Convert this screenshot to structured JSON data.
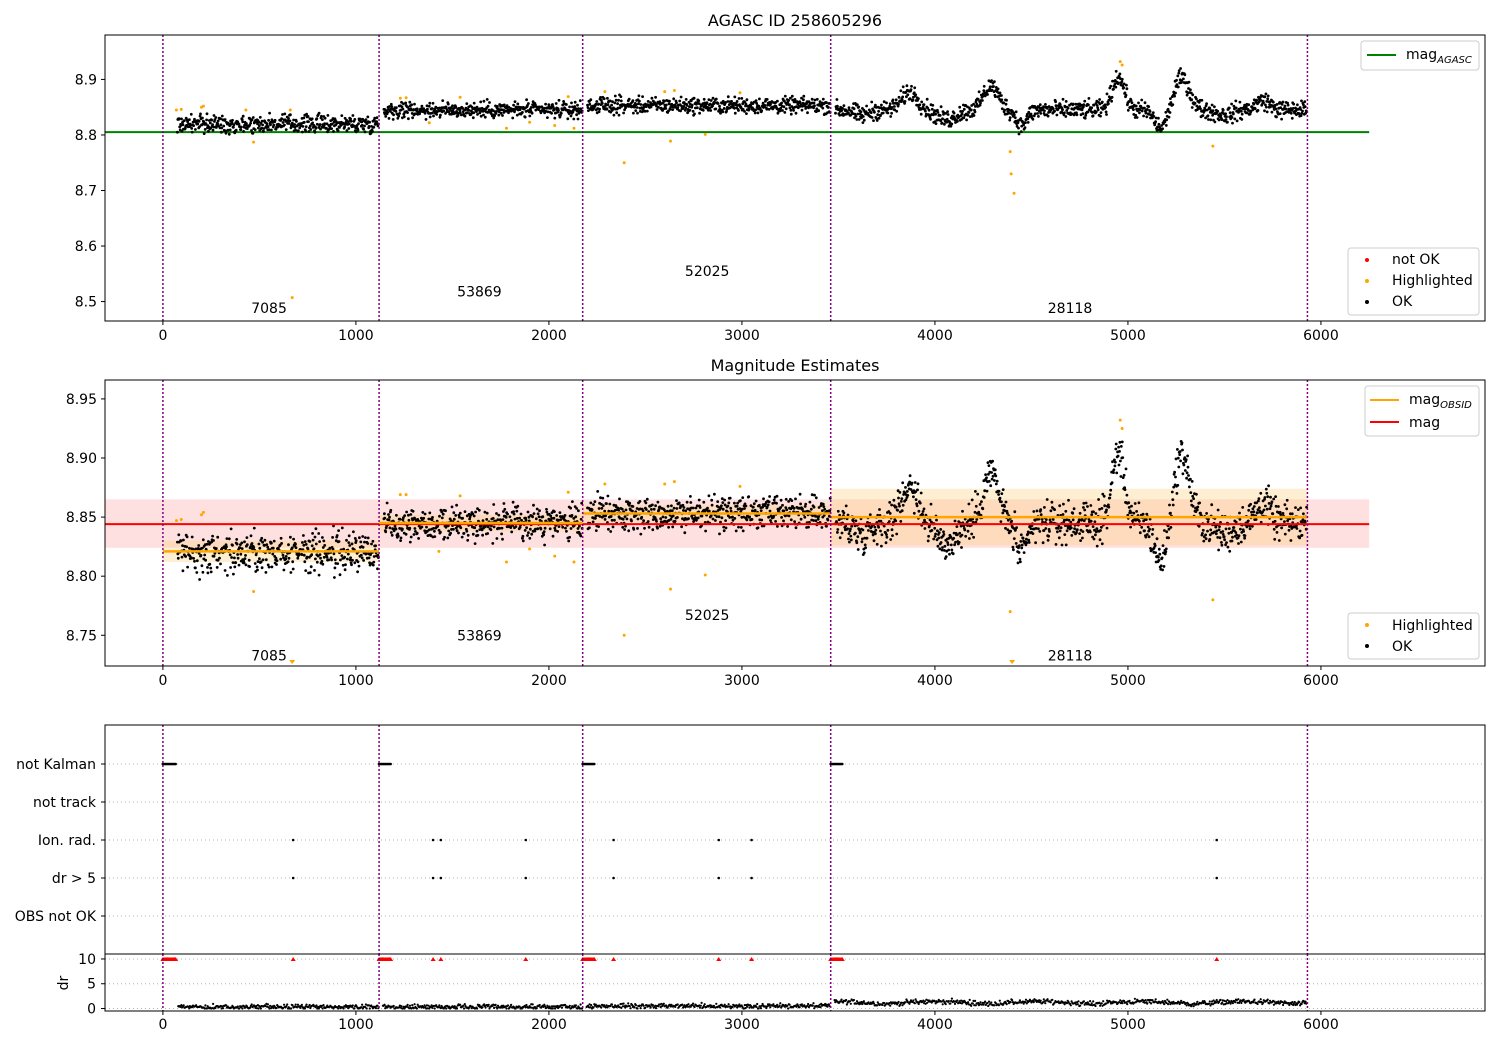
{
  "colors": {
    "ok": "#000000",
    "highlighted": "#ffa500",
    "not_ok": "#ff0000",
    "mag_agasc": "#008000",
    "mag_obsid": "#ffa500",
    "mag": "#ff0000",
    "obsid_line": "#800080",
    "grid": "#b0b0b0"
  },
  "chart_data": [
    {
      "type": "scatter",
      "title": "AGASC ID 258605296",
      "xlim": [
        -300,
        6850
      ],
      "ylim": [
        8.465,
        8.98
      ],
      "x_ticks": [
        0,
        1000,
        2000,
        3000,
        4000,
        5000,
        6000
      ],
      "y_ticks": [
        8.5,
        8.6,
        8.7,
        8.8,
        8.9
      ],
      "obsid_boundaries": [
        0,
        1120,
        2175,
        3460,
        5930
      ],
      "obsid_labels": [
        {
          "text": "7085",
          "x": 550,
          "y": 8.488
        },
        {
          "text": "53869",
          "x": 1640,
          "y": 8.518
        },
        {
          "text": "52025",
          "x": 2820,
          "y": 8.555
        },
        {
          "text": "28118",
          "x": 4700,
          "y": 8.488
        }
      ],
      "mag_agasc": {
        "label": "mag",
        "sub": "AGASC",
        "value": 8.805,
        "x_range": [
          -300,
          6250
        ]
      },
      "segments": [
        {
          "start": 50,
          "end": 1120,
          "mean": 8.82,
          "noise": 0.008,
          "gap_after": 0
        },
        {
          "start": 1120,
          "end": 2175,
          "mean": 8.845,
          "noise": 0.007
        },
        {
          "start": 2175,
          "end": 3460,
          "mean": 8.853,
          "noise": 0.007
        },
        {
          "start": 3460,
          "end": 5930,
          "mean": 8.85,
          "noise": 0.008
        }
      ],
      "highlighted_points": [
        [
          70,
          8.845
        ],
        [
          95,
          8.846
        ],
        [
          200,
          8.85
        ],
        [
          210,
          8.852
        ],
        [
          430,
          8.845
        ],
        [
          470,
          8.787
        ],
        [
          660,
          8.845
        ],
        [
          670,
          8.507
        ],
        [
          1230,
          8.866
        ],
        [
          1260,
          8.867
        ],
        [
          1540,
          8.868
        ],
        [
          1780,
          8.812
        ],
        [
          1900,
          8.823
        ],
        [
          2030,
          8.817
        ],
        [
          2100,
          8.869
        ],
        [
          2130,
          8.812
        ],
        [
          2290,
          8.878
        ],
        [
          2390,
          8.75
        ],
        [
          2600,
          8.878
        ],
        [
          2630,
          8.789
        ],
        [
          2650,
          8.88
        ],
        [
          2810,
          8.801
        ],
        [
          2990,
          8.876
        ],
        [
          4390,
          8.77
        ],
        [
          4395,
          8.73
        ],
        [
          4410,
          8.695
        ],
        [
          4960,
          8.932
        ],
        [
          4970,
          8.926
        ],
        [
          5440,
          8.78
        ],
        [
          1380,
          8.822
        ]
      ],
      "legend_top": [
        {
          "label": "mag",
          "sub": "AGASC"
        }
      ],
      "legend_bottom": [
        {
          "label": "not OK",
          "color_key": "not_ok"
        },
        {
          "label": "Highlighted",
          "color_key": "highlighted"
        },
        {
          "label": "OK",
          "color_key": "ok"
        }
      ]
    },
    {
      "type": "scatter",
      "title": "Magnitude Estimates",
      "xlim": [
        -300,
        6850
      ],
      "ylim": [
        8.724,
        8.966
      ],
      "x_ticks": [
        0,
        1000,
        2000,
        3000,
        4000,
        5000,
        6000
      ],
      "y_ticks": [
        8.75,
        8.8,
        8.85,
        8.9,
        8.95
      ],
      "obsid_boundaries": [
        0,
        1120,
        2175,
        3460,
        5930
      ],
      "obsid_labels": [
        {
          "text": "7085",
          "x": 550,
          "y": 8.733
        },
        {
          "text": "53869",
          "x": 1640,
          "y": 8.75
        },
        {
          "text": "52025",
          "x": 2820,
          "y": 8.767
        },
        {
          "text": "28118",
          "x": 4700,
          "y": 8.733
        }
      ],
      "mag": {
        "label": "mag",
        "value": 8.844,
        "band": [
          8.824,
          8.865
        ],
        "x_range": [
          -300,
          6250
        ]
      },
      "mag_obsid": {
        "label": "mag",
        "sub": "OBSID",
        "segments": [
          {
            "x": [
              0,
              1120
            ],
            "value": 8.821,
            "band": [
              8.812,
              8.83
            ]
          },
          {
            "x": [
              1120,
              2175
            ],
            "value": 8.845,
            "band": [
              8.838,
              8.852
            ]
          },
          {
            "x": [
              2175,
              3460
            ],
            "value": 8.853,
            "band": [
              8.846,
              8.86
            ]
          },
          {
            "x": [
              3460,
              5930
            ],
            "value": 8.85,
            "band": [
              8.826,
              8.874
            ]
          }
        ]
      },
      "highlighted_points": [
        [
          70,
          8.847
        ],
        [
          95,
          8.848
        ],
        [
          200,
          8.852
        ],
        [
          210,
          8.854
        ],
        [
          470,
          8.787
        ],
        [
          1230,
          8.869
        ],
        [
          1260,
          8.869
        ],
        [
          1430,
          8.821
        ],
        [
          1540,
          8.868
        ],
        [
          1780,
          8.812
        ],
        [
          1900,
          8.823
        ],
        [
          2030,
          8.817
        ],
        [
          2100,
          8.871
        ],
        [
          2130,
          8.812
        ],
        [
          2290,
          8.878
        ],
        [
          2390,
          8.75
        ],
        [
          2600,
          8.878
        ],
        [
          2630,
          8.789
        ],
        [
          2650,
          8.88
        ],
        [
          2810,
          8.801
        ],
        [
          2990,
          8.876
        ],
        [
          4390,
          8.77
        ],
        [
          4960,
          8.932
        ],
        [
          4970,
          8.925
        ],
        [
          5440,
          8.78
        ]
      ],
      "legend_top": [
        {
          "label": "mag",
          "sub": "OBSID",
          "color_key": "mag_obsid"
        },
        {
          "label": "mag",
          "color_key": "mag"
        }
      ],
      "legend_bottom": [
        {
          "label": "Highlighted",
          "color_key": "highlighted"
        },
        {
          "label": "OK",
          "color_key": "ok"
        }
      ]
    },
    {
      "type": "scatter",
      "title": "",
      "xlim": [
        -300,
        6850
      ],
      "x_ticks": [
        0,
        1000,
        2000,
        3000,
        4000,
        5000,
        6000
      ],
      "obsid_boundaries": [
        0,
        1120,
        2175,
        3460,
        5930
      ],
      "flag_rows": [
        "not Kalman",
        "not track",
        "Ion. rad.",
        "dr > 5",
        "OBS not OK"
      ],
      "flags": {
        "not Kalman": [
          [
            0,
            70
          ],
          [
            1120,
            1180
          ],
          [
            2175,
            2235
          ],
          [
            3460,
            3520
          ]
        ],
        "not track": [],
        "Ion. rad.": [
          675,
          1400,
          1440,
          1880,
          2335,
          2880,
          3050,
          5460
        ],
        "dr > 5": [
          675,
          1400,
          1440,
          1880,
          2335,
          2880,
          3050,
          5460
        ],
        "OBS not OK": []
      },
      "dr": {
        "ylabel": "dr",
        "ylim": [
          -0.5,
          11
        ],
        "y_ticks": [
          0,
          5,
          10
        ],
        "clipped_value": 10,
        "clipped_x": [
          675,
          1400,
          1440,
          1880,
          2335,
          2880,
          3050,
          5460
        ],
        "clipped_ranges": [
          [
            0,
            70
          ],
          [
            1120,
            1180
          ],
          [
            2175,
            2235
          ],
          [
            3460,
            3520
          ]
        ],
        "segments": [
          {
            "start": 60,
            "end": 1120,
            "mean": 0.3
          },
          {
            "start": 1120,
            "end": 2175,
            "mean": 0.3
          },
          {
            "start": 2175,
            "end": 3460,
            "mean": 0.5
          },
          {
            "start": 3460,
            "end": 5930,
            "mean": 1.1
          }
        ]
      }
    }
  ]
}
